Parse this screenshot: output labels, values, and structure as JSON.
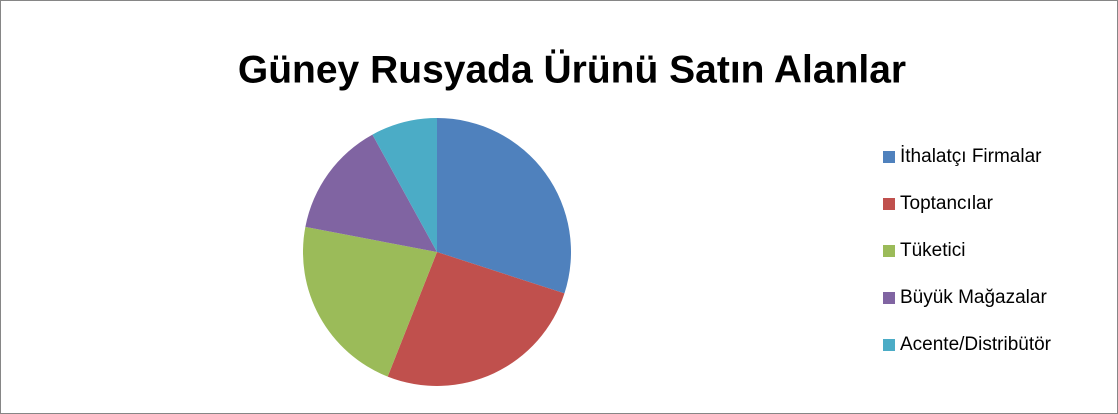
{
  "chart_data": {
    "type": "pie",
    "title": "Güney Rusyada Ürünü Satın Alanlar",
    "categories": [
      "İthalatçı Firmalar",
      "Toptancılar",
      "Tüketici",
      "Büyük Mağazalar",
      "Acente/Distribütör"
    ],
    "values": [
      30,
      26,
      22,
      14,
      8
    ],
    "colors": [
      "#4f81bd",
      "#c0504d",
      "#9bbb59",
      "#8064a2",
      "#4bacc6"
    ],
    "legend": "right"
  }
}
